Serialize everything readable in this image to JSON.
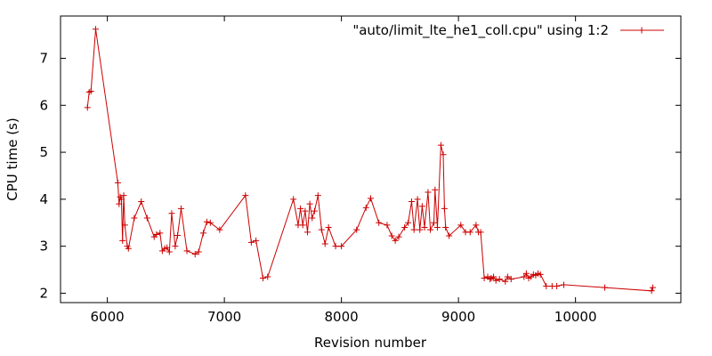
{
  "chart_data": {
    "type": "line",
    "xlabel": "Revision number",
    "ylabel": "CPU time (s)",
    "xlim": [
      5600,
      10900
    ],
    "ylim": [
      1.8,
      7.9
    ],
    "xticks": [
      6000,
      7000,
      8000,
      9000,
      10000
    ],
    "yticks": [
      2,
      3,
      4,
      5,
      6,
      7
    ],
    "legend_position": "top-right",
    "grid": false,
    "series": [
      {
        "name": "\"auto/limit_lte_he1_coll.cpu\" using 1:2",
        "color": "#cc0000",
        "marker": "plus",
        "x": [
          5830,
          5845,
          5860,
          5900,
          6090,
          6100,
          6110,
          6120,
          6130,
          6140,
          6150,
          6170,
          6180,
          6230,
          6290,
          6340,
          6400,
          6420,
          6450,
          6470,
          6490,
          6510,
          6530,
          6550,
          6580,
          6600,
          6630,
          6680,
          6750,
          6780,
          6820,
          6850,
          6880,
          6960,
          7180,
          7230,
          7270,
          7330,
          7370,
          7590,
          7630,
          7650,
          7670,
          7690,
          7710,
          7730,
          7750,
          7770,
          7800,
          7830,
          7860,
          7890,
          7950,
          8000,
          8130,
          8210,
          8250,
          8320,
          8390,
          8430,
          8460,
          8490,
          8540,
          8570,
          8600,
          8620,
          8650,
          8670,
          8690,
          8710,
          8740,
          8760,
          8790,
          8800,
          8820,
          8850,
          8870,
          8880,
          8890,
          8920,
          9020,
          9060,
          9100,
          9150,
          9170,
          9190,
          9220,
          9250,
          9270,
          9280,
          9300,
          9320,
          9350,
          9400,
          9420,
          9450,
          9560,
          9580,
          9600,
          9620,
          9640,
          9660,
          9680,
          9700,
          9750,
          9800,
          9840,
          9900,
          10250,
          10650,
          10660
        ],
        "y": [
          5.95,
          6.28,
          6.3,
          7.62,
          4.35,
          3.9,
          4.05,
          4.0,
          3.12,
          4.08,
          3.45,
          3.0,
          2.95,
          3.6,
          3.95,
          3.6,
          3.2,
          3.25,
          3.28,
          2.9,
          2.95,
          2.97,
          2.88,
          3.7,
          3.0,
          3.23,
          3.8,
          2.9,
          2.83,
          2.88,
          3.28,
          3.52,
          3.5,
          3.35,
          4.08,
          3.08,
          3.12,
          2.32,
          2.35,
          4.0,
          3.45,
          3.8,
          3.45,
          3.75,
          3.3,
          3.9,
          3.6,
          3.75,
          4.08,
          3.35,
          3.05,
          3.4,
          3.0,
          3.0,
          3.35,
          3.82,
          4.02,
          3.5,
          3.45,
          3.22,
          3.12,
          3.2,
          3.4,
          3.5,
          3.95,
          3.35,
          4.0,
          3.35,
          3.85,
          3.4,
          4.15,
          3.35,
          3.5,
          4.2,
          3.4,
          5.15,
          4.95,
          3.8,
          3.4,
          3.22,
          3.45,
          3.3,
          3.3,
          3.45,
          3.3,
          3.3,
          2.32,
          2.35,
          2.3,
          2.32,
          2.35,
          2.27,
          2.3,
          2.25,
          2.35,
          2.3,
          2.35,
          2.42,
          2.32,
          2.35,
          2.4,
          2.38,
          2.42,
          2.4,
          2.15,
          2.15,
          2.15,
          2.18,
          2.12,
          2.05,
          2.12
        ]
      }
    ]
  }
}
